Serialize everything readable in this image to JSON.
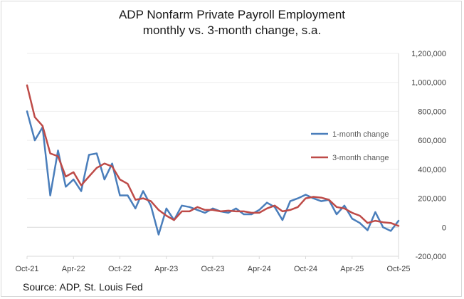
{
  "chart_data": {
    "type": "line",
    "title_line1": "ADP Nonfarm Private Payroll Employment",
    "title_line2": "monthly vs. 3-month change, s.a.",
    "source": "Source: ADP, St. Louis Fed",
    "ylim": [
      -200000,
      1200000
    ],
    "y_ticks": [
      {
        "value": 1200000,
        "label": "1,200,000"
      },
      {
        "value": 1000000,
        "label": "1,000,000"
      },
      {
        "value": 800000,
        "label": "800,000"
      },
      {
        "value": 600000,
        "label": "600,000"
      },
      {
        "value": 400000,
        "label": "400,000"
      },
      {
        "value": 200000,
        "label": "200,000"
      },
      {
        "value": 0,
        "label": "0"
      },
      {
        "value": -200000,
        "label": "-200,000"
      }
    ],
    "x_ticks": [
      {
        "index": 0,
        "label": "Oct-21"
      },
      {
        "index": 6,
        "label": "Apr-22"
      },
      {
        "index": 12,
        "label": "Oct-22"
      },
      {
        "index": 18,
        "label": "Apr-23"
      },
      {
        "index": 24,
        "label": "Oct-23"
      },
      {
        "index": 30,
        "label": "Apr-24"
      },
      {
        "index": 36,
        "label": "Oct-24"
      },
      {
        "index": 42,
        "label": "Apr-25"
      },
      {
        "index": 48,
        "label": "Oct-25"
      }
    ],
    "n_points": 49,
    "legend_position": "right-middle",
    "series": [
      {
        "name": "1-month change",
        "color": "#4a7ebb",
        "values": [
          800000,
          600000,
          690000,
          220000,
          530000,
          280000,
          330000,
          250000,
          500000,
          510000,
          330000,
          440000,
          220000,
          220000,
          130000,
          250000,
          150000,
          -50000,
          130000,
          50000,
          150000,
          140000,
          120000,
          100000,
          130000,
          110000,
          100000,
          130000,
          90000,
          90000,
          120000,
          170000,
          140000,
          50000,
          180000,
          200000,
          225000,
          200000,
          180000,
          190000,
          90000,
          150000,
          60000,
          30000,
          -20000,
          105000,
          0,
          -25000,
          45000
        ]
      },
      {
        "name": "3-month change",
        "color": "#be4b48",
        "values": [
          980000,
          760000,
          700000,
          510000,
          490000,
          350000,
          380000,
          290000,
          350000,
          410000,
          440000,
          420000,
          330000,
          300000,
          190000,
          200000,
          180000,
          120000,
          80000,
          50000,
          110000,
          110000,
          140000,
          120000,
          120000,
          110000,
          115000,
          110000,
          110000,
          100000,
          100000,
          130000,
          150000,
          110000,
          120000,
          140000,
          200000,
          210000,
          205000,
          190000,
          140000,
          130000,
          100000,
          80000,
          30000,
          45000,
          35000,
          30000,
          10000
        ]
      }
    ]
  }
}
